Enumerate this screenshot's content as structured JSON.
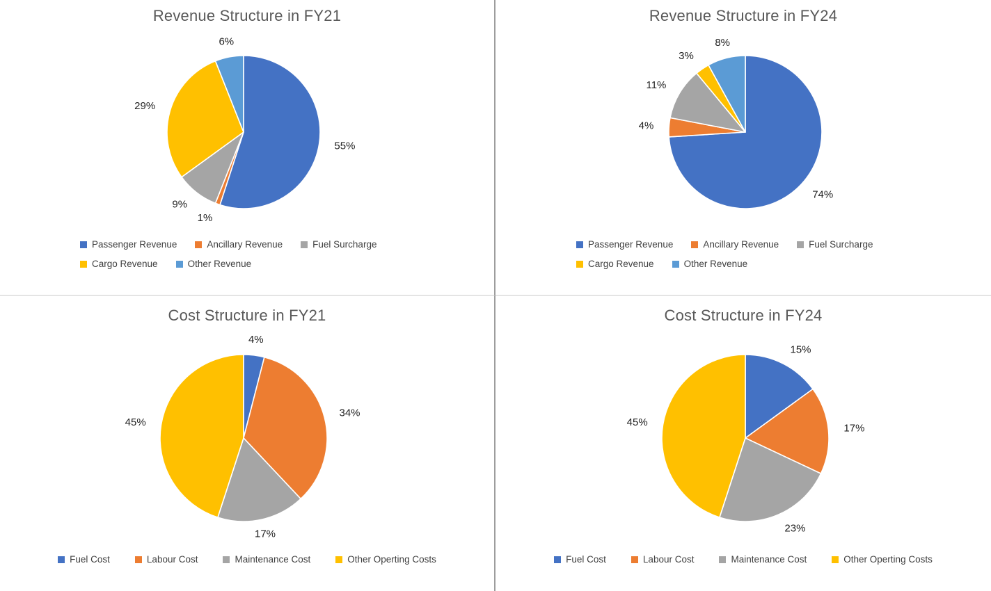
{
  "palette": {
    "blue": "#4472C4",
    "orange": "#ED7D31",
    "gray": "#A5A5A5",
    "yellow": "#FFC000",
    "light_blue": "#5B9BD5"
  },
  "chart_data": [
    {
      "type": "pie",
      "title": "Revenue Structure in FY21",
      "categories": [
        "Passenger Revenue",
        "Ancillary Revenue",
        "Fuel Surcharge",
        "Cargo Revenue",
        "Other Revenue"
      ],
      "values": [
        55,
        1,
        9,
        29,
        6
      ],
      "value_labels": [
        "55%",
        "1%",
        "9%",
        "29%",
        "6%"
      ],
      "colors": [
        "#4472C4",
        "#ED7D31",
        "#A5A5A5",
        "#FFC000",
        "#5B9BD5"
      ],
      "start_angle_deg": 0,
      "direction": "clockwise",
      "legend_position": "bottom"
    },
    {
      "type": "pie",
      "title": "Revenue Structure in FY24",
      "categories": [
        "Passenger Revenue",
        "Ancillary Revenue",
        "Fuel Surcharge",
        "Cargo Revenue",
        "Other Revenue"
      ],
      "values": [
        74,
        4,
        11,
        3,
        8
      ],
      "value_labels": [
        "74%",
        "4%",
        "11%",
        "3%",
        "8%"
      ],
      "colors": [
        "#4472C4",
        "#ED7D31",
        "#A5A5A5",
        "#FFC000",
        "#5B9BD5"
      ],
      "start_angle_deg": 0,
      "direction": "clockwise",
      "legend_position": "bottom"
    },
    {
      "type": "pie",
      "title": "Cost Structure in FY21",
      "categories": [
        "Fuel Cost",
        "Labour Cost",
        "Maintenance Cost",
        "Other Operting Costs"
      ],
      "values": [
        4,
        34,
        17,
        45
      ],
      "value_labels": [
        "4%",
        "34%",
        "17%",
        "45%"
      ],
      "colors": [
        "#4472C4",
        "#ED7D31",
        "#A5A5A5",
        "#FFC000"
      ],
      "start_angle_deg": 0,
      "direction": "clockwise",
      "legend_position": "bottom"
    },
    {
      "type": "pie",
      "title": "Cost Structure in FY24",
      "categories": [
        "Fuel Cost",
        "Labour Cost",
        "Maintenance Cost",
        "Other Operting Costs"
      ],
      "values": [
        15,
        17,
        23,
        45
      ],
      "value_labels": [
        "15%",
        "17%",
        "23%",
        "45%"
      ],
      "colors": [
        "#4472C4",
        "#ED7D31",
        "#A5A5A5",
        "#FFC000"
      ],
      "start_angle_deg": 0,
      "direction": "clockwise",
      "legend_position": "bottom"
    }
  ]
}
